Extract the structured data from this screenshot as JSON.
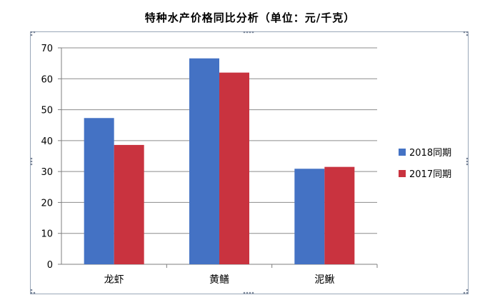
{
  "chart_data": {
    "type": "bar",
    "title": "特种水产价格同比分析（单位：元/千克）",
    "xlabel": "",
    "ylabel": "",
    "categories": [
      "龙虾",
      "黄鳝",
      "泥鳅"
    ],
    "series": [
      {
        "name": "2018同期",
        "color": "#4472c4",
        "values": [
          47.3,
          66.6,
          30.9
        ]
      },
      {
        "name": "2017同期",
        "color": "#c9333f",
        "values": [
          38.6,
          62.0,
          31.5
        ]
      }
    ],
    "ylim": [
      0,
      70
    ],
    "yticks": [
      0,
      10,
      20,
      30,
      40,
      50,
      60,
      70
    ],
    "grid": true,
    "legend": "right"
  }
}
